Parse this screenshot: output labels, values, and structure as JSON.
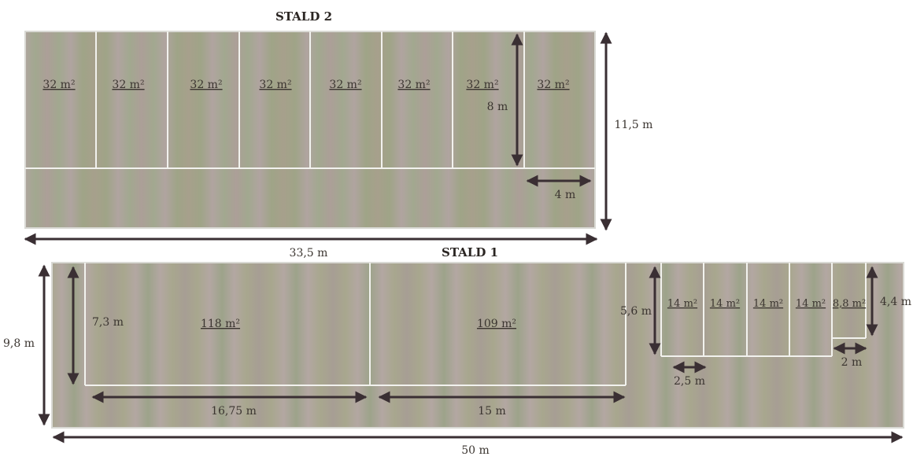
{
  "stald2": {
    "title": "STALD 2",
    "pens": [
      "32 m²",
      "32 m²",
      "32 m²",
      "32 m²",
      "32 m²",
      "32 m²",
      "32 m²",
      "32 m²"
    ],
    "pen_height": "8 m",
    "pen_width": "4 m",
    "total_height": "11,5 m",
    "total_width": "33,5 m"
  },
  "stald1": {
    "title": "STALD 1",
    "large_pens": [
      {
        "area": "118 m²",
        "width": "16,75 m",
        "height": "7,3 m"
      },
      {
        "area": "109 m²",
        "width": "15 m"
      }
    ],
    "small_pens": [
      "14 m²",
      "14 m²",
      "14 m²",
      "14 m²"
    ],
    "small_pen_height": "5,6 m",
    "small_pen_width": "2,5 m",
    "last_pen": {
      "area": "8,8 m²",
      "height": "4,4 m",
      "width": "2 m"
    },
    "total_height": "9,8 m",
    "total_width": "50 m"
  },
  "colors": {
    "floor_a": "#9c9e86",
    "floor_b": "#b4a8a0",
    "pen_line": "#f2f2ee",
    "arrow": "#3a2f33"
  }
}
